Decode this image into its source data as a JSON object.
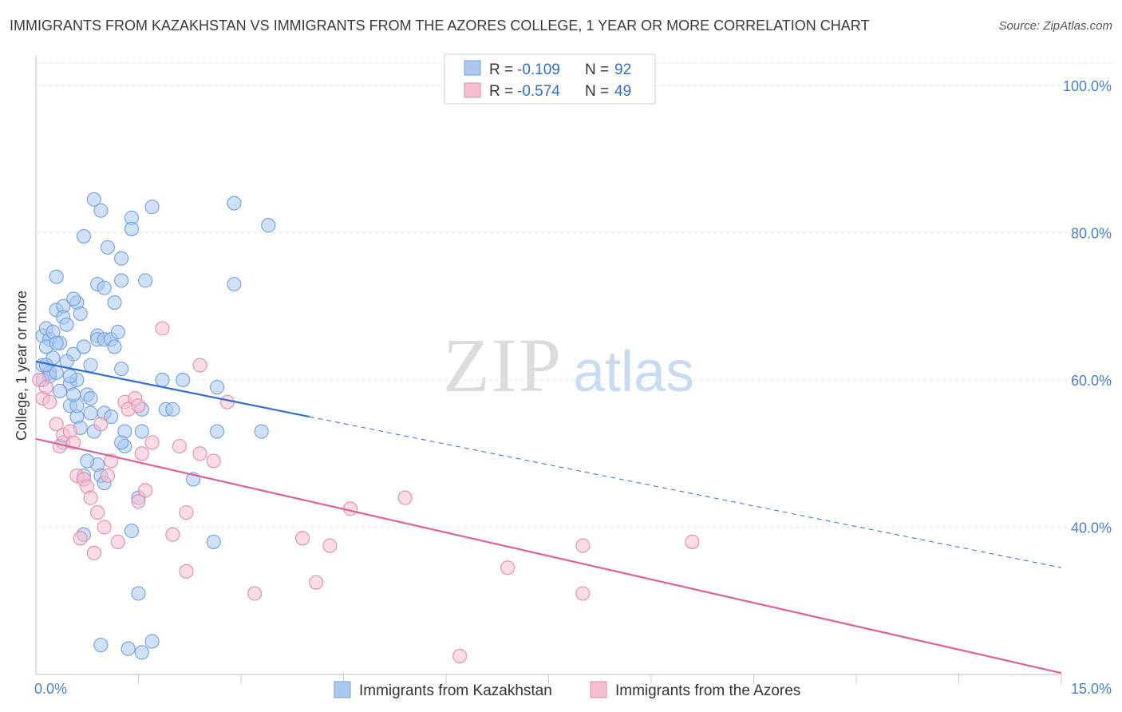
{
  "title": "IMMIGRANTS FROM KAZAKHSTAN VS IMMIGRANTS FROM THE AZORES COLLEGE, 1 YEAR OR MORE CORRELATION CHART",
  "source": "Source: ZipAtlas.com",
  "watermark": {
    "zip": "ZIP",
    "atlas": "atlas"
  },
  "legend": {
    "rows": [
      {
        "r_label": "R =",
        "r_value": "-0.109",
        "n_label": "N =",
        "n_value": "92"
      },
      {
        "r_label": "R =",
        "r_value": "-0.574",
        "n_label": "N =",
        "n_value": "49"
      }
    ]
  },
  "chart_data": {
    "type": "scatter",
    "title": "IMMIGRANTS FROM KAZAKHSTAN VS IMMIGRANTS FROM THE AZORES COLLEGE, 1 YEAR OR MORE CORRELATION CHART",
    "xlabel": "",
    "ylabel": "College, 1 year or more",
    "xlim": [
      0,
      15
    ],
    "ylim": [
      20,
      104
    ],
    "x_tick_labels": [
      "0.0%",
      "15.0%"
    ],
    "y_ticks": [
      40,
      60,
      80,
      100
    ],
    "y_tick_labels": [
      "40.0%",
      "60.0%",
      "80.0%",
      "100.0%"
    ],
    "legend_position": "top-center",
    "series": [
      {
        "name": "Immigrants from Kazakhstan",
        "color": "#6fa0e0",
        "fill": "#aac8f0",
        "trend": {
          "x0": 0,
          "y0": 62.5,
          "x1": 4.0,
          "y1": 55.0,
          "dash_to_x": 15,
          "dash_to_y": 34.5,
          "color": "#2f6fd0"
        },
        "points": [
          [
            0.1,
            66
          ],
          [
            0.1,
            62
          ],
          [
            0.15,
            67
          ],
          [
            0.2,
            65.5
          ],
          [
            0.2,
            61
          ],
          [
            0.25,
            63
          ],
          [
            0.1,
            60
          ],
          [
            0.3,
            74
          ],
          [
            0.3,
            69.5
          ],
          [
            0.35,
            65
          ],
          [
            0.4,
            70
          ],
          [
            0.4,
            68.5
          ],
          [
            0.45,
            67.5
          ],
          [
            0.5,
            59.5
          ],
          [
            0.55,
            63.5
          ],
          [
            0.5,
            56.5
          ],
          [
            0.6,
            60
          ],
          [
            0.6,
            70.5
          ],
          [
            0.55,
            71
          ],
          [
            0.65,
            69
          ],
          [
            0.7,
            64.5
          ],
          [
            0.75,
            58
          ],
          [
            0.8,
            55.5
          ],
          [
            0.8,
            57.5
          ],
          [
            0.85,
            53
          ],
          [
            0.9,
            66
          ],
          [
            0.9,
            48.5
          ],
          [
            0.95,
            47
          ],
          [
            0.6,
            55
          ],
          [
            0.7,
            47
          ],
          [
            0.85,
            84.5
          ],
          [
            0.95,
            83
          ],
          [
            0.7,
            79.5
          ],
          [
            1.05,
            78
          ],
          [
            1.25,
            76.5
          ],
          [
            1.4,
            82
          ],
          [
            1.4,
            80.5
          ],
          [
            1.7,
            83.5
          ],
          [
            2.9,
            84
          ],
          [
            3.4,
            81
          ],
          [
            0.9,
            73
          ],
          [
            1.0,
            72.5
          ],
          [
            1.15,
            70.5
          ],
          [
            1.25,
            73.5
          ],
          [
            1.6,
            73.5
          ],
          [
            2.9,
            73
          ],
          [
            0.9,
            65.5
          ],
          [
            1.0,
            65.5
          ],
          [
            1.1,
            65.5
          ],
          [
            1.2,
            66.5
          ],
          [
            1.15,
            64.5
          ],
          [
            1.25,
            61.5
          ],
          [
            1.0,
            55.5
          ],
          [
            1.3,
            53
          ],
          [
            1.3,
            51
          ],
          [
            1.5,
            44
          ],
          [
            1.4,
            39.5
          ],
          [
            1.5,
            31
          ],
          [
            1.55,
            23
          ],
          [
            1.7,
            24.5
          ],
          [
            1.85,
            60
          ],
          [
            1.9,
            56
          ],
          [
            2.0,
            56
          ],
          [
            2.15,
            60
          ],
          [
            2.3,
            46.5
          ],
          [
            2.6,
            38
          ],
          [
            2.65,
            59
          ],
          [
            2.65,
            53
          ],
          [
            3.3,
            53
          ],
          [
            1.55,
            53
          ],
          [
            0.95,
            24
          ],
          [
            1.35,
            23.5
          ],
          [
            0.7,
            39
          ],
          [
            1.25,
            51.5
          ],
          [
            0.2,
            60.5
          ],
          [
            0.15,
            62
          ],
          [
            0.3,
            61
          ],
          [
            0.45,
            62.5
          ],
          [
            0.5,
            60.5
          ],
          [
            0.35,
            58.5
          ],
          [
            0.6,
            56.5
          ],
          [
            0.4,
            51.5
          ],
          [
            0.65,
            53.5
          ],
          [
            0.8,
            62
          ],
          [
            1.0,
            46
          ],
          [
            1.55,
            56
          ],
          [
            0.25,
            66.5
          ],
          [
            0.15,
            64.5
          ],
          [
            0.3,
            65
          ],
          [
            0.55,
            58
          ],
          [
            0.75,
            49
          ],
          [
            1.1,
            55
          ]
        ]
      },
      {
        "name": "Immigrants from the Azores",
        "color": "#e88aa8",
        "fill": "#f5bfd0",
        "trend": {
          "x0": 0,
          "y0": 52.0,
          "x1": 15,
          "y1": 20.2,
          "color": "#e0609a"
        },
        "points": [
          [
            0.05,
            60
          ],
          [
            0.1,
            57.5
          ],
          [
            0.15,
            59
          ],
          [
            0.3,
            54
          ],
          [
            0.35,
            51
          ],
          [
            0.4,
            52.5
          ],
          [
            0.5,
            53
          ],
          [
            0.55,
            51.5
          ],
          [
            0.6,
            47
          ],
          [
            0.7,
            46.5
          ],
          [
            0.75,
            45.5
          ],
          [
            0.8,
            44
          ],
          [
            0.9,
            42
          ],
          [
            0.95,
            54
          ],
          [
            1.0,
            40
          ],
          [
            1.05,
            47
          ],
          [
            1.1,
            49
          ],
          [
            0.65,
            38.5
          ],
          [
            0.85,
            36.5
          ],
          [
            1.2,
            38
          ],
          [
            1.3,
            57
          ],
          [
            1.35,
            56
          ],
          [
            1.45,
            57.5
          ],
          [
            1.5,
            56.5
          ],
          [
            1.6,
            45
          ],
          [
            1.5,
            43.5
          ],
          [
            1.55,
            50
          ],
          [
            1.7,
            51.5
          ],
          [
            1.85,
            67
          ],
          [
            2.0,
            39
          ],
          [
            2.1,
            51
          ],
          [
            2.2,
            42
          ],
          [
            2.2,
            34
          ],
          [
            2.4,
            62
          ],
          [
            2.4,
            50
          ],
          [
            2.6,
            49
          ],
          [
            2.8,
            57
          ],
          [
            3.2,
            31
          ],
          [
            3.9,
            38.5
          ],
          [
            4.1,
            32.5
          ],
          [
            4.3,
            37.5
          ],
          [
            4.6,
            42.5
          ],
          [
            5.4,
            44
          ],
          [
            6.2,
            22.5
          ],
          [
            6.9,
            34.5
          ],
          [
            8.0,
            37.5
          ],
          [
            8.0,
            31
          ],
          [
            9.6,
            38
          ],
          [
            0.2,
            57
          ]
        ]
      }
    ]
  },
  "axis_labels": {
    "x_left": "0.0%",
    "x_right": "15.0%"
  },
  "bottom_legend": [
    "Immigrants from Kazakhstan",
    "Immigrants from the Azores"
  ]
}
